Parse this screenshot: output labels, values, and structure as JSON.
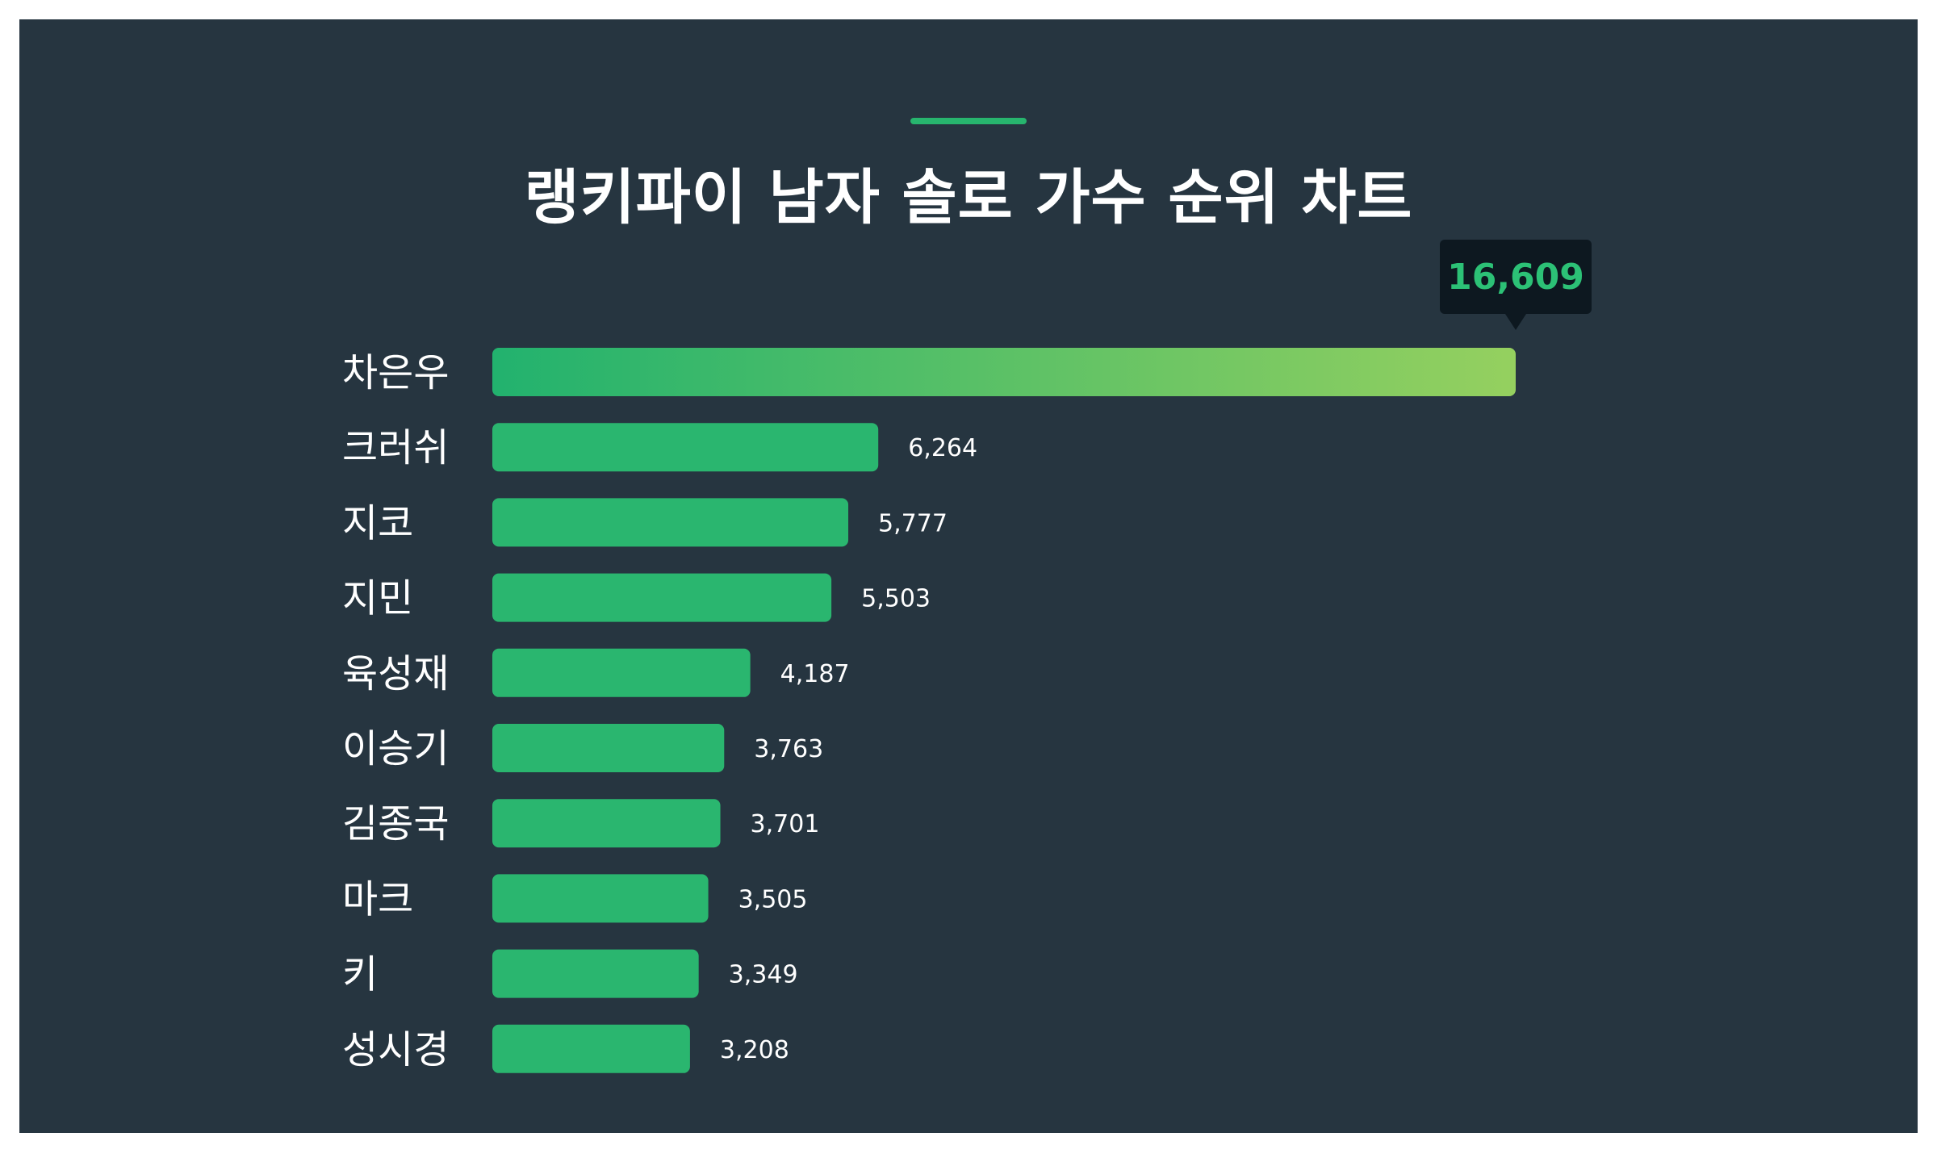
{
  "title": "랭키파이 남자 솔로 가수 순위 차트",
  "colors": {
    "background": "#263540",
    "bar": "#2ab66f",
    "highlight_gradient_start": "#22b26e",
    "highlight_gradient_end": "#95d05f",
    "callout_bg": "#0d1820",
    "callout_text": "#2cc176",
    "accent": "#27b56e"
  },
  "chart_data": {
    "type": "bar",
    "orientation": "horizontal",
    "title": "랭키파이 남자 솔로 가수 순위 차트",
    "categories": [
      "차은우",
      "크러쉬",
      "지코",
      "지민",
      "육성재",
      "이승기",
      "김종국",
      "마크",
      "키",
      "성시경"
    ],
    "values": [
      16609,
      6264,
      5777,
      5503,
      4187,
      3763,
      3701,
      3505,
      3349,
      3208
    ],
    "value_labels": [
      "16,609",
      "6,264",
      "5,777",
      "5,503",
      "4,187",
      "3,763",
      "3,701",
      "3,505",
      "3,349",
      "3,208"
    ],
    "highlight_index": 0,
    "grid": false,
    "legend": "none",
    "xlim": [
      0,
      16609
    ]
  }
}
